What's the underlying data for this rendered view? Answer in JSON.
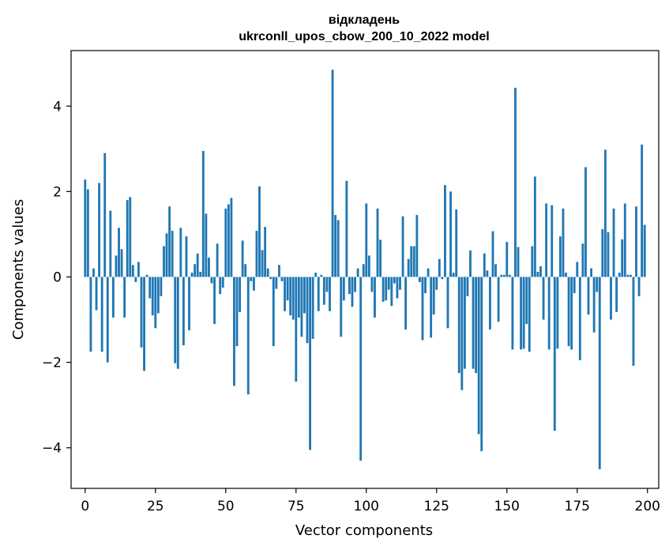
{
  "chart_data": {
    "type": "bar",
    "title_line1": "відкладень",
    "title_line2": "ukrconll_upos_cbow_200_10_2022 model",
    "xlabel": "Vector components",
    "ylabel": "Components values",
    "xlim": [
      -5,
      204
    ],
    "ylim": [
      -4.95,
      5.3
    ],
    "xticks": [
      0,
      25,
      50,
      75,
      100,
      125,
      150,
      175,
      200
    ],
    "yticks": [
      -4,
      -2,
      0,
      2,
      4
    ],
    "color": "#1f77b4",
    "x": [
      0,
      1,
      2,
      3,
      4,
      5,
      6,
      7,
      8,
      9,
      10,
      11,
      12,
      13,
      14,
      15,
      16,
      17,
      18,
      19,
      20,
      21,
      22,
      23,
      24,
      25,
      26,
      27,
      28,
      29,
      30,
      31,
      32,
      33,
      34,
      35,
      36,
      37,
      38,
      39,
      40,
      41,
      42,
      43,
      44,
      45,
      46,
      47,
      48,
      49,
      50,
      51,
      52,
      53,
      54,
      55,
      56,
      57,
      58,
      59,
      60,
      61,
      62,
      63,
      64,
      65,
      66,
      67,
      68,
      69,
      70,
      71,
      72,
      73,
      74,
      75,
      76,
      77,
      78,
      79,
      80,
      81,
      82,
      83,
      84,
      85,
      86,
      87,
      88,
      89,
      90,
      91,
      92,
      93,
      94,
      95,
      96,
      97,
      98,
      99,
      100,
      101,
      102,
      103,
      104,
      105,
      106,
      107,
      108,
      109,
      110,
      111,
      112,
      113,
      114,
      115,
      116,
      117,
      118,
      119,
      120,
      121,
      122,
      123,
      124,
      125,
      126,
      127,
      128,
      129,
      130,
      131,
      132,
      133,
      134,
      135,
      136,
      137,
      138,
      139,
      140,
      141,
      142,
      143,
      144,
      145,
      146,
      147,
      148,
      149,
      150,
      151,
      152,
      153,
      154,
      155,
      156,
      157,
      158,
      159,
      160,
      161,
      162,
      163,
      164,
      165,
      166,
      167,
      168,
      169,
      170,
      171,
      172,
      173,
      174,
      175,
      176,
      177,
      178,
      179,
      180,
      181,
      182,
      183,
      184,
      185,
      186,
      187,
      188,
      189,
      190,
      191,
      192,
      193,
      194,
      195,
      196,
      197,
      198,
      199
    ],
    "values": [
      2.28,
      2.05,
      -1.75,
      0.2,
      -0.78,
      2.2,
      -1.75,
      2.9,
      -2.0,
      1.55,
      -0.95,
      0.5,
      1.15,
      0.65,
      -0.95,
      1.8,
      1.87,
      0.28,
      -0.12,
      0.35,
      -1.65,
      -2.2,
      0.05,
      -0.5,
      -0.9,
      -1.2,
      -0.85,
      -0.45,
      0.72,
      1.02,
      1.65,
      1.08,
      -2.02,
      -2.15,
      1.15,
      -1.6,
      0.95,
      -1.25,
      0.1,
      0.3,
      0.55,
      0.12,
      2.95,
      1.48,
      0.45,
      -0.15,
      -1.1,
      0.78,
      -0.4,
      -0.25,
      1.6,
      1.7,
      1.85,
      -2.55,
      -1.62,
      -0.82,
      0.85,
      0.3,
      -2.75,
      -0.1,
      -0.32,
      1.08,
      2.12,
      0.63,
      1.17,
      0.2,
      -0.05,
      -1.62,
      -0.28,
      0.28,
      -0.1,
      -0.8,
      -0.55,
      -0.9,
      -1.0,
      -2.45,
      -0.95,
      -1.4,
      -0.85,
      -1.55,
      -4.05,
      -1.45,
      0.1,
      -0.8,
      0.05,
      -0.65,
      -0.35,
      -0.8,
      4.85,
      1.45,
      1.33,
      -1.4,
      -0.55,
      2.25,
      -0.4,
      -0.7,
      -0.35,
      0.2,
      -4.3,
      0.3,
      1.72,
      0.5,
      -0.35,
      -0.95,
      1.6,
      0.87,
      -0.58,
      -0.55,
      -0.3,
      -0.68,
      -0.15,
      -0.5,
      -0.3,
      1.42,
      -1.23,
      0.42,
      0.72,
      0.72,
      1.45,
      -0.12,
      -1.48,
      -0.38,
      0.2,
      -1.42,
      -0.88,
      -0.3,
      0.42,
      -0.05,
      2.15,
      -1.2,
      2.0,
      0.1,
      1.58,
      -2.25,
      -2.65,
      -2.15,
      -0.45,
      0.62,
      -2.15,
      -2.25,
      -3.68,
      -4.08,
      0.55,
      0.15,
      -1.23,
      1.07,
      0.3,
      -1.05,
      0.05,
      0.05,
      0.82,
      0.05,
      -1.7,
      4.43,
      0.7,
      -1.7,
      -1.68,
      -1.1,
      -1.75,
      0.72,
      2.35,
      0.12,
      0.25,
      -1.0,
      1.72,
      -1.7,
      1.68,
      -3.6,
      -1.68,
      0.95,
      1.6,
      0.1,
      -1.62,
      -1.7,
      -0.38,
      0.35,
      -1.95,
      0.78,
      2.57,
      -0.88,
      0.2,
      -1.3,
      -0.35,
      -4.5,
      1.12,
      2.98,
      1.05,
      -1.0,
      1.6,
      -0.82,
      0.1,
      0.88,
      1.72,
      0.05,
      0.05,
      -2.08,
      1.65,
      -0.45,
      3.1,
      1.22
    ]
  }
}
